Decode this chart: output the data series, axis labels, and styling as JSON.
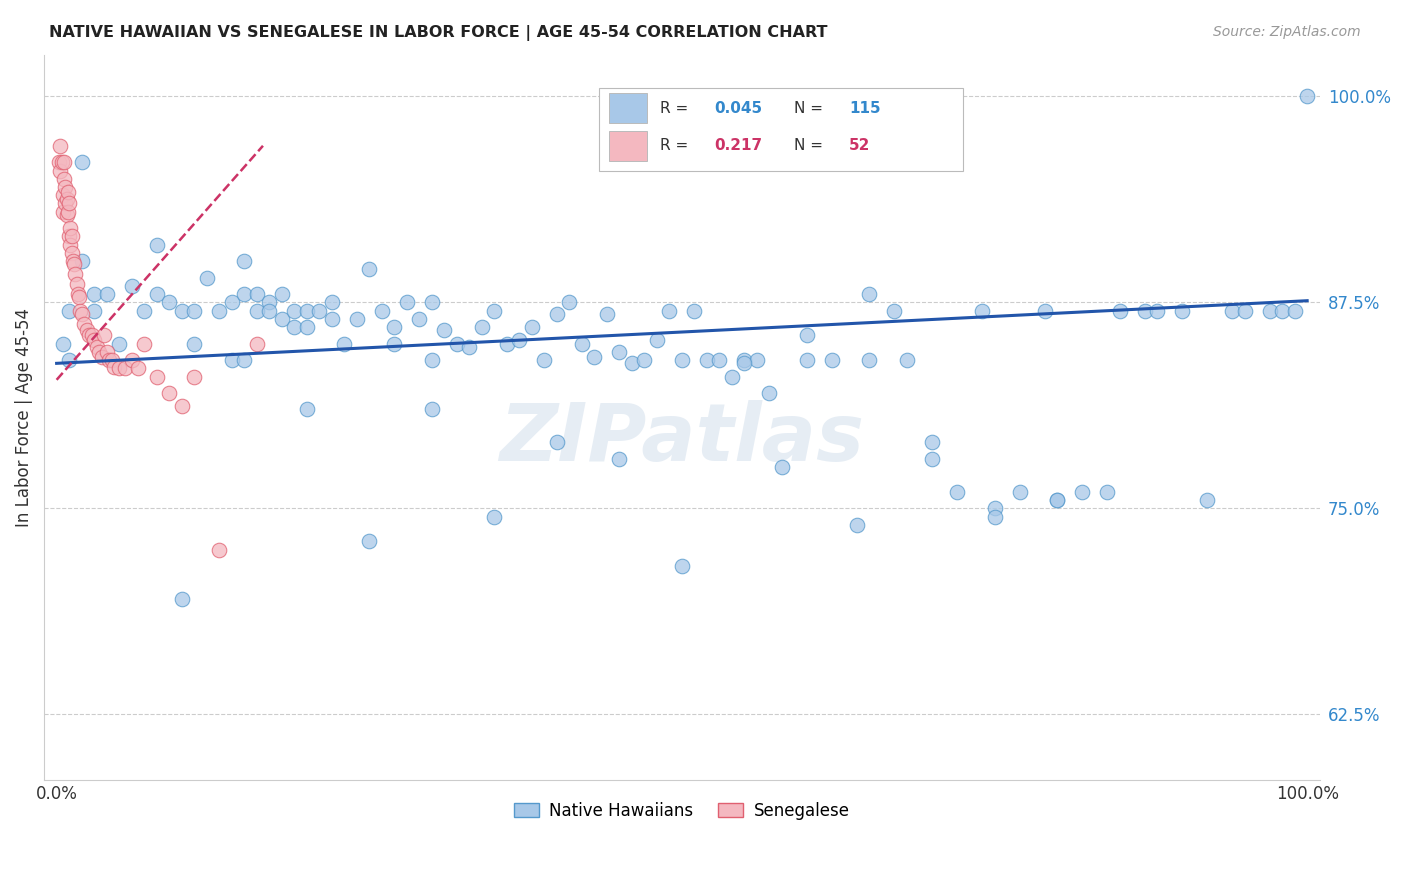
{
  "title": "NATIVE HAWAIIAN VS SENEGALESE IN LABOR FORCE | AGE 45-54 CORRELATION CHART",
  "source_text": "Source: ZipAtlas.com",
  "ylabel": "In Labor Force | Age 45-54",
  "y_tick_labels": [
    "62.5%",
    "75.0%",
    "87.5%",
    "100.0%"
  ],
  "y_tick_values": [
    0.625,
    0.75,
    0.875,
    1.0
  ],
  "blue_color": "#a8c8e8",
  "blue_edge": "#5599cc",
  "pink_color": "#f4b8c0",
  "pink_edge": "#e06070",
  "trend_blue": "#2255aa",
  "trend_pink": "#cc3366",
  "watermark": "ZIPatlas",
  "blue_scatter_x": [
    0.005,
    0.01,
    0.01,
    0.02,
    0.02,
    0.03,
    0.03,
    0.04,
    0.05,
    0.06,
    0.07,
    0.08,
    0.08,
    0.09,
    0.1,
    0.11,
    0.11,
    0.12,
    0.13,
    0.14,
    0.14,
    0.15,
    0.15,
    0.16,
    0.16,
    0.17,
    0.17,
    0.18,
    0.18,
    0.19,
    0.19,
    0.2,
    0.2,
    0.21,
    0.22,
    0.22,
    0.23,
    0.24,
    0.25,
    0.26,
    0.27,
    0.27,
    0.28,
    0.29,
    0.3,
    0.3,
    0.31,
    0.32,
    0.33,
    0.34,
    0.35,
    0.36,
    0.37,
    0.38,
    0.39,
    0.4,
    0.41,
    0.42,
    0.43,
    0.44,
    0.45,
    0.46,
    0.47,
    0.48,
    0.49,
    0.5,
    0.51,
    0.52,
    0.53,
    0.54,
    0.55,
    0.56,
    0.57,
    0.58,
    0.6,
    0.62,
    0.64,
    0.65,
    0.67,
    0.68,
    0.7,
    0.72,
    0.74,
    0.75,
    0.77,
    0.79,
    0.8,
    0.82,
    0.84,
    0.85,
    0.87,
    0.88,
    0.9,
    0.92,
    0.94,
    0.95,
    0.97,
    0.98,
    0.99,
    1.0,
    0.1,
    0.15,
    0.2,
    0.25,
    0.3,
    0.35,
    0.4,
    0.45,
    0.5,
    0.55,
    0.6,
    0.65,
    0.7,
    0.75,
    0.8
  ],
  "blue_scatter_y": [
    0.85,
    0.84,
    0.87,
    0.9,
    0.96,
    0.87,
    0.88,
    0.88,
    0.85,
    0.885,
    0.87,
    0.88,
    0.91,
    0.875,
    0.87,
    0.87,
    0.85,
    0.89,
    0.87,
    0.875,
    0.84,
    0.88,
    0.9,
    0.87,
    0.88,
    0.875,
    0.87,
    0.88,
    0.865,
    0.87,
    0.86,
    0.87,
    0.86,
    0.87,
    0.875,
    0.865,
    0.85,
    0.865,
    0.895,
    0.87,
    0.86,
    0.85,
    0.875,
    0.865,
    0.875,
    0.84,
    0.858,
    0.85,
    0.848,
    0.86,
    0.87,
    0.85,
    0.852,
    0.86,
    0.84,
    0.868,
    0.875,
    0.85,
    0.842,
    0.868,
    0.78,
    0.838,
    0.84,
    0.852,
    0.87,
    0.84,
    0.87,
    0.84,
    0.84,
    0.83,
    0.84,
    0.84,
    0.82,
    0.775,
    0.84,
    0.84,
    0.74,
    0.88,
    0.87,
    0.84,
    0.78,
    0.76,
    0.87,
    0.75,
    0.76,
    0.87,
    0.755,
    0.76,
    0.76,
    0.87,
    0.87,
    0.87,
    0.87,
    0.755,
    0.87,
    0.87,
    0.87,
    0.87,
    0.87,
    1.0,
    0.695,
    0.84,
    0.81,
    0.73,
    0.81,
    0.745,
    0.79,
    0.845,
    0.715,
    0.838,
    0.855,
    0.84,
    0.79,
    0.745,
    0.755
  ],
  "pink_scatter_x": [
    0.002,
    0.003,
    0.003,
    0.004,
    0.005,
    0.005,
    0.006,
    0.006,
    0.007,
    0.007,
    0.008,
    0.008,
    0.009,
    0.009,
    0.01,
    0.01,
    0.011,
    0.011,
    0.012,
    0.012,
    0.013,
    0.014,
    0.015,
    0.016,
    0.017,
    0.018,
    0.019,
    0.02,
    0.022,
    0.024,
    0.026,
    0.028,
    0.03,
    0.032,
    0.034,
    0.036,
    0.038,
    0.04,
    0.042,
    0.044,
    0.046,
    0.05,
    0.055,
    0.06,
    0.065,
    0.07,
    0.08,
    0.09,
    0.1,
    0.11,
    0.13,
    0.16
  ],
  "pink_scatter_y": [
    0.96,
    0.955,
    0.97,
    0.96,
    0.94,
    0.93,
    0.96,
    0.95,
    0.945,
    0.935,
    0.938,
    0.928,
    0.942,
    0.93,
    0.935,
    0.915,
    0.92,
    0.91,
    0.915,
    0.905,
    0.9,
    0.898,
    0.892,
    0.886,
    0.88,
    0.878,
    0.87,
    0.868,
    0.862,
    0.858,
    0.855,
    0.855,
    0.852,
    0.848,
    0.845,
    0.842,
    0.855,
    0.845,
    0.84,
    0.84,
    0.836,
    0.835,
    0.835,
    0.84,
    0.835,
    0.85,
    0.83,
    0.82,
    0.812,
    0.83,
    0.725,
    0.85
  ],
  "xlim": [
    -0.01,
    1.01
  ],
  "ylim": [
    0.585,
    1.025
  ],
  "blue_trend_x0": 0.0,
  "blue_trend_x1": 1.0,
  "blue_trend_y0": 0.838,
  "blue_trend_y1": 0.876,
  "pink_trend_x0": 0.0,
  "pink_trend_x1": 0.165,
  "pink_trend_y0": 0.828,
  "pink_trend_y1": 0.97
}
